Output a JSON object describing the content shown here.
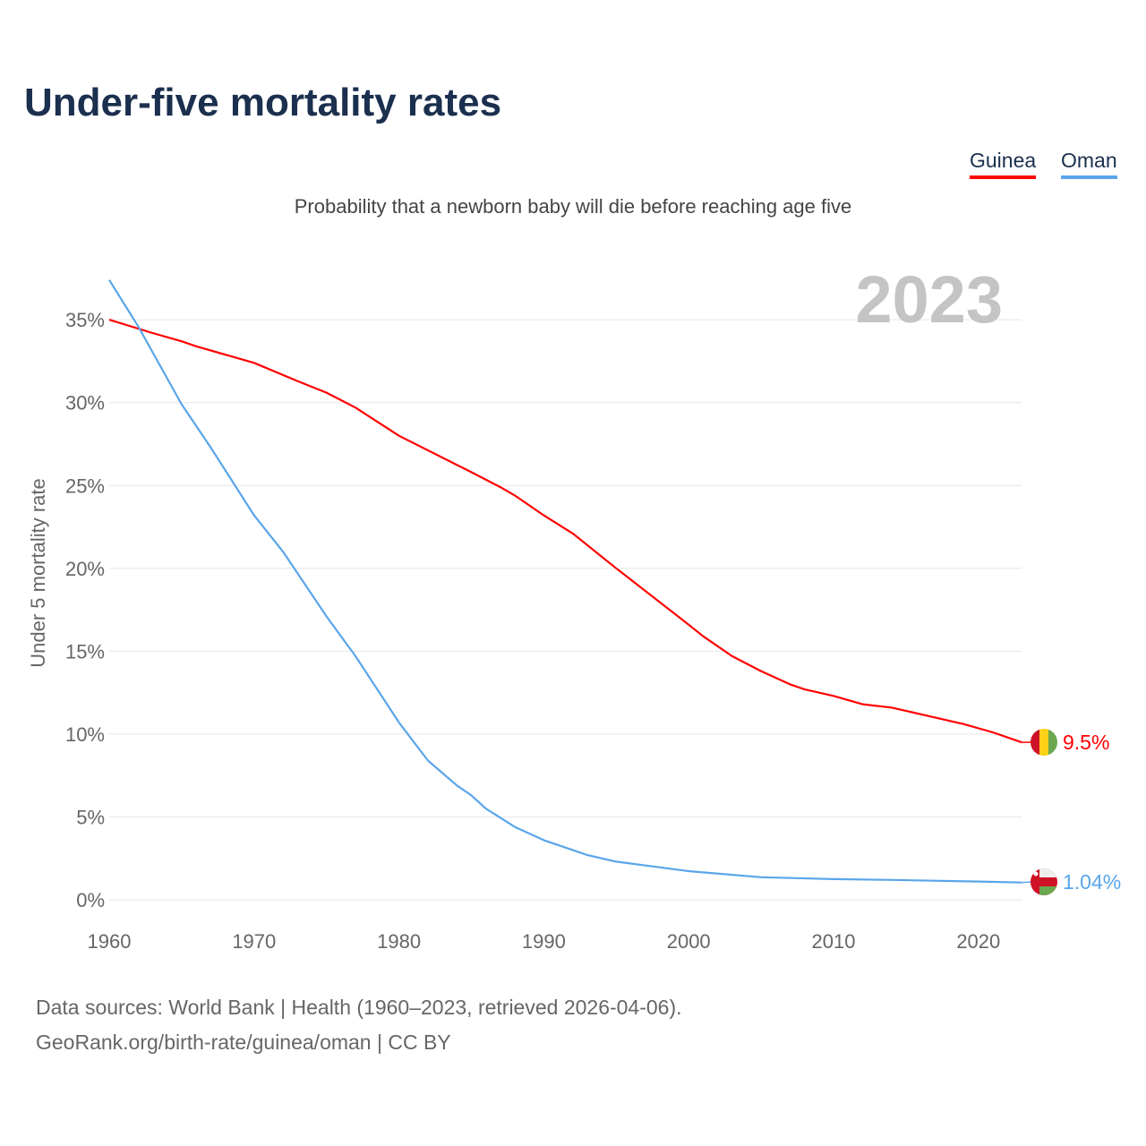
{
  "chart_data": {
    "type": "line",
    "title": "Under-five mortality rates",
    "subtitle": "Probability that a newborn baby will die before reaching age five",
    "ylabel": "Under 5 mortality rate",
    "xlabel": "",
    "year_label": "2023",
    "xlim": [
      1960,
      2023
    ],
    "ylim": [
      0,
      37.5
    ],
    "x_ticks": [
      "1960",
      "1970",
      "1980",
      "1990",
      "2000",
      "2010",
      "2020"
    ],
    "x_tick_values": [
      1960,
      1970,
      1980,
      1990,
      2000,
      2010,
      2020
    ],
    "y_ticks": [
      "0%",
      "5%",
      "10%",
      "15%",
      "20%",
      "25%",
      "30%",
      "35%"
    ],
    "y_tick_values": [
      0,
      5,
      10,
      15,
      20,
      25,
      30,
      35
    ],
    "grid": true,
    "legend_position": "top-right",
    "series": [
      {
        "name": "Guinea",
        "color": "#ff0000",
        "end_label": "9.5%",
        "x": [
          1960,
          1963,
          1965,
          1966,
          1970,
          1973,
          1975,
          1977,
          1980,
          1985,
          1987,
          1988,
          1990,
          1992,
          1995,
          2000,
          2001,
          2003,
          2005,
          2007,
          2008,
          2010,
          2012,
          2014,
          2016,
          2019,
          2021,
          2023
        ],
        "y": [
          35.0,
          34.2,
          33.7,
          33.4,
          32.4,
          31.3,
          30.6,
          29.7,
          28.0,
          25.8,
          24.9,
          24.4,
          23.2,
          22.1,
          20.0,
          16.6,
          15.9,
          14.7,
          13.8,
          13.0,
          12.7,
          12.3,
          11.8,
          11.6,
          11.2,
          10.6,
          10.1,
          9.5
        ]
      },
      {
        "name": "Oman",
        "color": "#5aa5ea",
        "end_label": "1.04%",
        "x": [
          1960,
          1962,
          1965,
          1967,
          1970,
          1972,
          1975,
          1977,
          1980,
          1982,
          1984,
          1985,
          1986,
          1988,
          1990,
          1993,
          1995,
          2000,
          2005,
          2010,
          2014,
          2020,
          2023
        ],
        "y": [
          37.4,
          34.6,
          29.9,
          27.3,
          23.2,
          21.0,
          17.1,
          14.7,
          10.7,
          8.4,
          6.9,
          6.3,
          5.5,
          4.4,
          3.6,
          2.7,
          2.3,
          1.73,
          1.36,
          1.25,
          1.2,
          1.1,
          1.04
        ]
      }
    ]
  },
  "source_line1": "Data sources: World Bank | Health (1960–2023, retrieved 2026-04-06).",
  "source_line2": "GeoRank.org/birth-rate/guinea/oman | CC BY"
}
